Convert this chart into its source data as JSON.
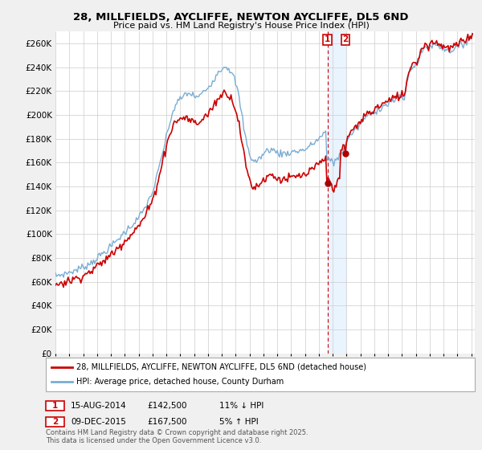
{
  "title": "28, MILLFIELDS, AYCLIFFE, NEWTON AYCLIFFE, DL5 6ND",
  "subtitle": "Price paid vs. HM Land Registry's House Price Index (HPI)",
  "bg_color": "#f0f0f0",
  "plot_bg_color": "#ffffff",
  "red_color": "#cc0000",
  "blue_color": "#7aadd4",
  "marker_color": "#aa0000",
  "dashed_color": "#cc0000",
  "shade_color": "#ddeeff",
  "legend_house": "28, MILLFIELDS, AYCLIFFE, NEWTON AYCLIFFE, DL5 6ND (detached house)",
  "legend_hpi": "HPI: Average price, detached house, County Durham",
  "annotation1_date": "15-AUG-2014",
  "annotation1_price": "£142,500",
  "annotation1_note": "11% ↓ HPI",
  "annotation2_date": "09-DEC-2015",
  "annotation2_price": "£167,500",
  "annotation2_note": "5% ↑ HPI",
  "footer": "Contains HM Land Registry data © Crown copyright and database right 2025.\nThis data is licensed under the Open Government Licence v3.0.",
  "ylim": [
    0,
    270000
  ],
  "yticks": [
    0,
    20000,
    40000,
    60000,
    80000,
    100000,
    120000,
    140000,
    160000,
    180000,
    200000,
    220000,
    240000,
    260000
  ],
  "point1_x": 2014.625,
  "point1_y": 142500,
  "point2_x": 2015.917,
  "point2_y": 167500,
  "xlim_start": 1995.0,
  "xlim_end": 2025.25
}
